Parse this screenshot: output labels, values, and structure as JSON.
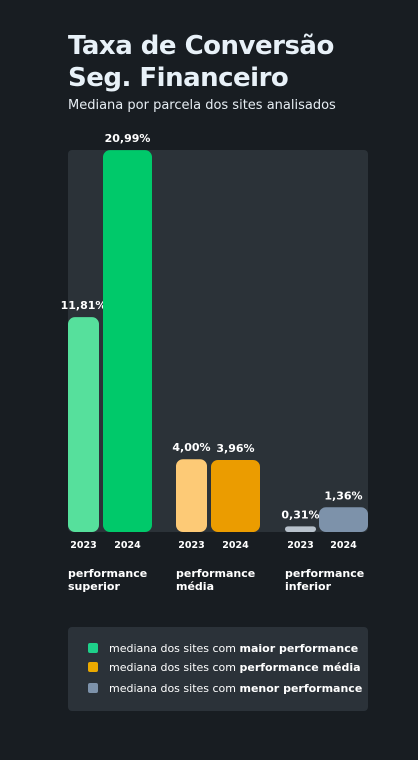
{
  "header": {
    "title_line1": "Taxa de Conversão",
    "title_line2": "Seg. Financeiro",
    "subtitle": "Mediana por parcela dos sites analisados"
  },
  "chart_data": {
    "type": "bar",
    "title": "Taxa de Conversão Seg. Financeiro",
    "subtitle": "Mediana por parcela dos sites analisados",
    "groups": [
      {
        "label": "performance superior",
        "bars": [
          {
            "year": "2023",
            "value": 11.81,
            "label": "11,81%",
            "color": "#56e09c"
          },
          {
            "year": "2024",
            "value": 20.99,
            "label": "20,99%",
            "color": "#00c96a"
          }
        ]
      },
      {
        "label": "performance média",
        "bars": [
          {
            "year": "2023",
            "value": 4.0,
            "label": "4,00%",
            "color": "#fdca76"
          },
          {
            "year": "2024",
            "value": 3.96,
            "label": "3,96%",
            "color": "#eb9c00"
          }
        ]
      },
      {
        "label": "performance inferior",
        "bars": [
          {
            "year": "2023",
            "value": 0.31,
            "label": "0,31%",
            "color": "#b8c2cc"
          },
          {
            "year": "2024",
            "value": 1.36,
            "label": "1,36%",
            "color": "#7d92aa"
          }
        ]
      }
    ],
    "ylim": [
      0,
      21
    ],
    "legend_position": "bottom"
  },
  "legend": {
    "items": [
      {
        "color": "#1ed18a",
        "prefix": "mediana dos sites com ",
        "strong": "maior performance"
      },
      {
        "color": "#eba900",
        "prefix": "mediana dos sites com ",
        "strong": "performance média"
      },
      {
        "color": "#7d92aa",
        "prefix": "mediana dos sites com ",
        "strong": "menor performance"
      }
    ]
  }
}
